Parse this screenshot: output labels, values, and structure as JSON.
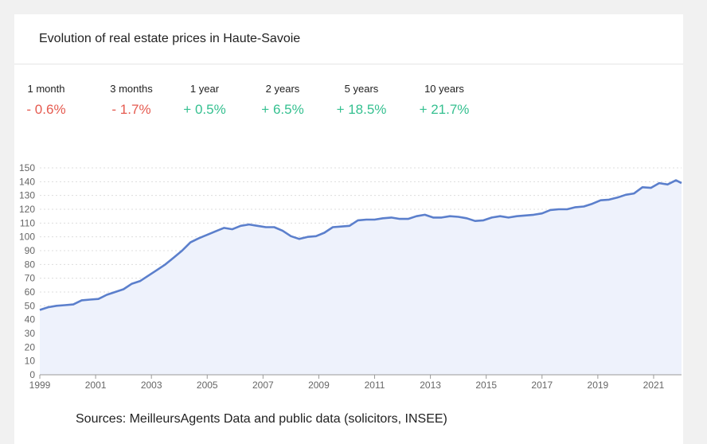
{
  "title": "Evolution of real estate prices in Haute-Savoie",
  "periods": [
    {
      "label": "1 month",
      "change": "- 0.6%",
      "trend": "negative"
    },
    {
      "label": "3 months",
      "change": "- 1.7%",
      "trend": "negative"
    },
    {
      "label": "1 year",
      "change": "+ 0.5%",
      "trend": "positive"
    },
    {
      "label": "2 years",
      "change": "+ 6.5%",
      "trend": "positive"
    },
    {
      "label": "5 years",
      "change": "+ 18.5%",
      "trend": "positive"
    },
    {
      "label": "10 years",
      "change": "+ 21.7%",
      "trend": "positive"
    }
  ],
  "source": "Sources: MeilleursAgents Data and public data (solicitors, INSEE)",
  "colors": {
    "line": "#5b7fcc",
    "fill": "#eef2fc",
    "negative": "#e55a4f",
    "positive": "#35c090",
    "grid": "#dddddd"
  },
  "chart_data": {
    "type": "area",
    "title": "",
    "xlabel": "",
    "ylabel": "",
    "xlim": [
      1999,
      2022
    ],
    "ylim": [
      0,
      150
    ],
    "ystep": 10,
    "xticks": [
      "1999",
      "2001",
      "2003",
      "2005",
      "2007",
      "2009",
      "2011",
      "2013",
      "2015",
      "2017",
      "2019",
      "2021"
    ],
    "grid": "horizontal dotted",
    "x": [
      1999,
      1999.3,
      1999.6,
      1999.9,
      2000.2,
      2000.5,
      2000.8,
      2001.1,
      2001.4,
      2001.7,
      2002.0,
      2002.3,
      2002.6,
      2002.9,
      2003.2,
      2003.5,
      2003.8,
      2004.1,
      2004.4,
      2004.7,
      2005.0,
      2005.3,
      2005.6,
      2005.9,
      2006.2,
      2006.5,
      2006.8,
      2007.1,
      2007.4,
      2007.7,
      2008.0,
      2008.3,
      2008.6,
      2008.9,
      2009.2,
      2009.5,
      2009.8,
      2010.1,
      2010.4,
      2010.7,
      2011.0,
      2011.3,
      2011.6,
      2011.9,
      2012.2,
      2012.5,
      2012.8,
      2013.1,
      2013.4,
      2013.7,
      2014.0,
      2014.3,
      2014.6,
      2014.9,
      2015.2,
      2015.5,
      2015.8,
      2016.1,
      2016.4,
      2016.7,
      2017.0,
      2017.3,
      2017.6,
      2017.9,
      2018.2,
      2018.5,
      2018.8,
      2019.1,
      2019.4,
      2019.7,
      2020.0,
      2020.3,
      2020.6,
      2020.9,
      2021.2,
      2021.5,
      2021.8,
      2022.0
    ],
    "series": [
      {
        "values": [
          47,
          49,
          50,
          50.5,
          51,
          54,
          54.5,
          55,
          58,
          60,
          62,
          66,
          68,
          72,
          76,
          80,
          85,
          90,
          96,
          99,
          101.5,
          104,
          106.5,
          105.5,
          108,
          109,
          108,
          107,
          107,
          104.5,
          100.5,
          98.5,
          100,
          100.5,
          103,
          107,
          107.5,
          108,
          112,
          112.5,
          112.5,
          113.5,
          114,
          113,
          113,
          115,
          116,
          114,
          114,
          115,
          114.5,
          113.5,
          111.5,
          112,
          114,
          115,
          114,
          115,
          115.5,
          116,
          117,
          119.5,
          120,
          120,
          121.5,
          122,
          124,
          126.5,
          127,
          128.5,
          130.5,
          131.5,
          136,
          135.5,
          139,
          138,
          141,
          139
        ]
      }
    ]
  }
}
